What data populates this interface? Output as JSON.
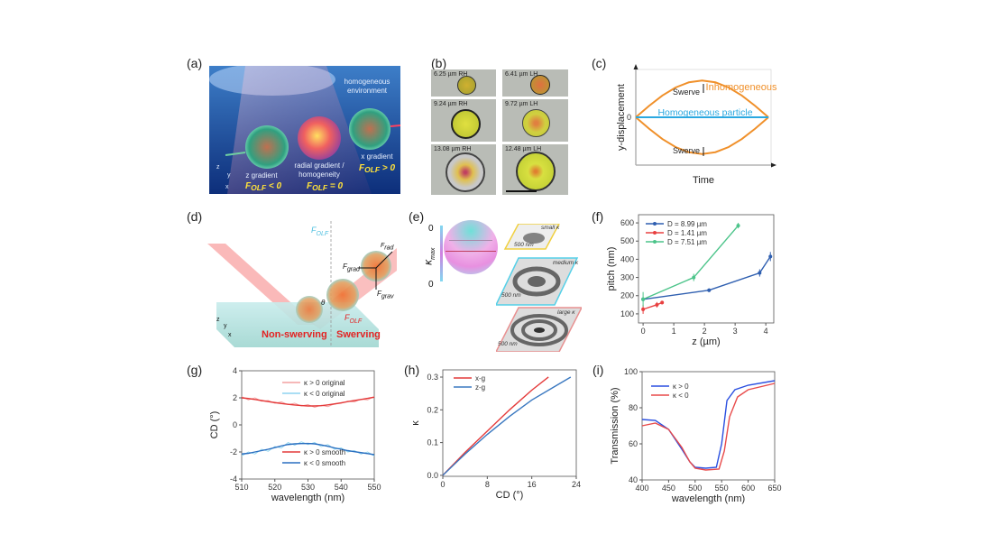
{
  "panel_labels": {
    "a": "(a)",
    "b": "(b)",
    "c": "(c)",
    "d": "(d)",
    "e": "(e)",
    "f": "(f)",
    "g": "(g)",
    "h": "(h)",
    "i": "(i)"
  },
  "panel_a": {
    "environment": "homogeneous environment",
    "left": {
      "label": "z gradient",
      "symbol": "F",
      "sub": "OLF",
      "rel": "< 0"
    },
    "center": {
      "label": "radial gradient / homogeneity",
      "symbol": "F",
      "sub": "OLF",
      "rel": "= 0"
    },
    "right": {
      "label": "x gradient",
      "symbol": "F",
      "sub": "OLF",
      "rel": "> 0"
    },
    "axes": {
      "z": "z",
      "y": "y",
      "x": "x"
    }
  },
  "panel_b": {
    "tiles": [
      "6.25 µm RH",
      "6.41 µm LH",
      "9.24 µm RH",
      "9.72 µm LH",
      "13.08 µm RH",
      "12.48 µm LH"
    ]
  },
  "panel_d": {
    "non_swerving": "Non-swerving",
    "swerving": "Swerving",
    "theta": "θ",
    "f_olf": {
      "symbol": "F",
      "sub": "OLF"
    },
    "f_grad": {
      "symbol": "F",
      "sub": "grad"
    },
    "f_rad": {
      "symbol": "F",
      "sub": "rad"
    },
    "f_grav": {
      "symbol": "F",
      "sub": "grav"
    },
    "axes": {
      "z": "z",
      "y": "y",
      "x": "x"
    }
  },
  "panel_e": {
    "scale_top": "0",
    "scale_bottom": "0",
    "scale_symbol": "κ",
    "scale_sub": "max",
    "tiles": [
      {
        "label": "small κ",
        "scale": "500 nm",
        "color": "#f0d040"
      },
      {
        "label": "medium κ",
        "scale": "500 nm",
        "color": "#55d0e8"
      },
      {
        "label": "large κ",
        "scale": "500 nm",
        "color": "#e89090"
      }
    ]
  },
  "chart_data": [
    {
      "panel": "c",
      "type": "line",
      "xlabel": "Time",
      "ylabel": "y-displacement",
      "yticks": [
        "0"
      ],
      "annotations": [
        "Swerve",
        "Swerve"
      ],
      "series": [
        {
          "name": "Inhomogeneous",
          "color": "#f0902a",
          "x": [
            0,
            0.1,
            0.2,
            0.3,
            0.4,
            0.5,
            0.6,
            0.7,
            0.8,
            0.9,
            1
          ],
          "values": [
            0,
            0.31,
            0.59,
            0.81,
            0.95,
            1,
            0.95,
            0.81,
            0.59,
            0.31,
            0
          ]
        },
        {
          "color": "#f0902a",
          "x": [
            0,
            0.1,
            0.2,
            0.3,
            0.4,
            0.5,
            0.6,
            0.7,
            0.8,
            0.9,
            1
          ],
          "values": [
            0,
            -0.31,
            -0.59,
            -0.81,
            -0.95,
            -1,
            -0.95,
            -0.81,
            -0.59,
            -0.31,
            0
          ]
        },
        {
          "name": "Homogeneous particle",
          "color": "#2aa8e0",
          "x": [
            0,
            1
          ],
          "values": [
            0,
            0
          ]
        }
      ],
      "xlim": [
        0,
        1.02
      ],
      "ylim": [
        -1.3,
        1.3
      ]
    },
    {
      "panel": "f",
      "type": "line",
      "xlabel": "z (µm)",
      "ylabel": "pitch (nm)",
      "xticks": [
        "0",
        "1",
        "2",
        "3",
        "4"
      ],
      "yticks": [
        "100",
        "200",
        "300",
        "400",
        "500",
        "600"
      ],
      "xlim": [
        -0.15,
        4.26
      ],
      "ylim": [
        50,
        645
      ],
      "legend": "top-left",
      "series": [
        {
          "name": "D = 8.99 µm",
          "color": "#2f5fb0",
          "x": [
            0,
            2.15,
            3.8,
            4.15
          ],
          "values": [
            180,
            230,
            325,
            415
          ],
          "err": [
            10,
            10,
            20,
            25
          ]
        },
        {
          "name": "D = 1.41 µm",
          "color": "#e84040",
          "x": [
            0,
            0.45,
            0.62
          ],
          "values": [
            125,
            150,
            162
          ],
          "err": [
            25,
            15,
            10
          ]
        },
        {
          "name": "D = 7.51 µm",
          "color": "#4cc48a",
          "x": [
            0,
            1.65,
            3.1
          ],
          "values": [
            180,
            300,
            585
          ],
          "err": [
            40,
            20,
            15
          ]
        }
      ]
    },
    {
      "panel": "g",
      "type": "line",
      "xlabel": "wavelength (nm)",
      "ylabel": "CD (°)",
      "xticks": [
        "510",
        "520",
        "530",
        "540",
        "550"
      ],
      "yticks": [
        "-4",
        "-2",
        "0",
        "2",
        "4"
      ],
      "xlim": [
        510,
        550
      ],
      "ylim": [
        -4,
        4
      ],
      "x": [
        510,
        512,
        514,
        516,
        518,
        520,
        522,
        524,
        526,
        528,
        530,
        532,
        534,
        536,
        538,
        540,
        542,
        544,
        546,
        548,
        550
      ],
      "series": [
        {
          "name": "κ > 0 original",
          "color": "#f4a0a0",
          "values": [
            2.1,
            1.85,
            2.0,
            1.75,
            1.8,
            1.6,
            1.7,
            1.5,
            1.6,
            1.4,
            1.5,
            1.3,
            1.45,
            1.35,
            1.55,
            1.6,
            1.75,
            1.7,
            1.9,
            1.85,
            2.1
          ]
        },
        {
          "name": "κ < 0 original",
          "color": "#8ed4f0",
          "values": [
            -2.3,
            -2.0,
            -2.15,
            -1.8,
            -1.95,
            -1.6,
            -1.7,
            -1.3,
            -1.5,
            -1.25,
            -1.45,
            -1.3,
            -1.6,
            -1.45,
            -1.8,
            -1.7,
            -2.0,
            -1.9,
            -2.15,
            -2.0,
            -2.3
          ]
        },
        {
          "name": "κ > 0 smooth",
          "color": "#e43a3a",
          "values": [
            2.0,
            1.95,
            1.88,
            1.8,
            1.72,
            1.65,
            1.58,
            1.52,
            1.47,
            1.43,
            1.4,
            1.4,
            1.42,
            1.48,
            1.55,
            1.63,
            1.72,
            1.8,
            1.88,
            1.96,
            2.05
          ]
        },
        {
          "name": "κ < 0 smooth",
          "color": "#2a6fc0",
          "values": [
            -2.15,
            -2.1,
            -2.0,
            -1.9,
            -1.8,
            -1.68,
            -1.55,
            -1.45,
            -1.4,
            -1.38,
            -1.37,
            -1.4,
            -1.48,
            -1.58,
            -1.7,
            -1.8,
            -1.9,
            -1.98,
            -2.05,
            -2.12,
            -2.2
          ]
        }
      ]
    },
    {
      "panel": "h",
      "type": "line",
      "xlabel": "CD (°)",
      "ylabel": "κ",
      "xticks": [
        "0",
        "8",
        "16",
        "24"
      ],
      "yticks": [
        "0.0",
        "0.1",
        "0.2",
        "0.3"
      ],
      "xlim": [
        0,
        24
      ],
      "ylim": [
        -0.003,
        0.322
      ],
      "legend": "top-left",
      "series": [
        {
          "name": "x-g",
          "color": "#e43a3a",
          "x": [
            0,
            4,
            8,
            12,
            16,
            19
          ],
          "values": [
            0,
            0.07,
            0.135,
            0.2,
            0.26,
            0.3
          ]
        },
        {
          "name": "z-g",
          "color": "#3a78c0",
          "x": [
            0,
            4,
            8,
            12,
            16,
            20,
            23
          ],
          "values": [
            0,
            0.065,
            0.125,
            0.18,
            0.23,
            0.27,
            0.3
          ]
        }
      ]
    },
    {
      "panel": "i",
      "type": "line",
      "xlabel": "wavelength (nm)",
      "ylabel": "Transmission (%)",
      "xticks": [
        "400",
        "450",
        "500",
        "550",
        "600",
        "650"
      ],
      "yticks": [
        "40",
        "60",
        "80",
        "100"
      ],
      "xlim": [
        400,
        650
      ],
      "ylim": [
        40,
        100
      ],
      "legend": "top-left",
      "series": [
        {
          "name": "κ > 0",
          "color": "#2a4fe0",
          "x": [
            400,
            425,
            450,
            475,
            490,
            500,
            520,
            540,
            550,
            560,
            575,
            600,
            650
          ],
          "values": [
            73.5,
            73,
            68,
            57,
            50,
            47,
            46.5,
            47,
            60,
            84,
            90,
            92.5,
            95
          ]
        },
        {
          "name": "κ < 0",
          "color": "#e84a4a",
          "x": [
            400,
            425,
            450,
            475,
            490,
            500,
            520,
            545,
            555,
            565,
            580,
            600,
            650
          ],
          "values": [
            70,
            71.5,
            68,
            58,
            50,
            46.5,
            45.5,
            46,
            56,
            75,
            86,
            90,
            93.5
          ]
        }
      ]
    }
  ]
}
